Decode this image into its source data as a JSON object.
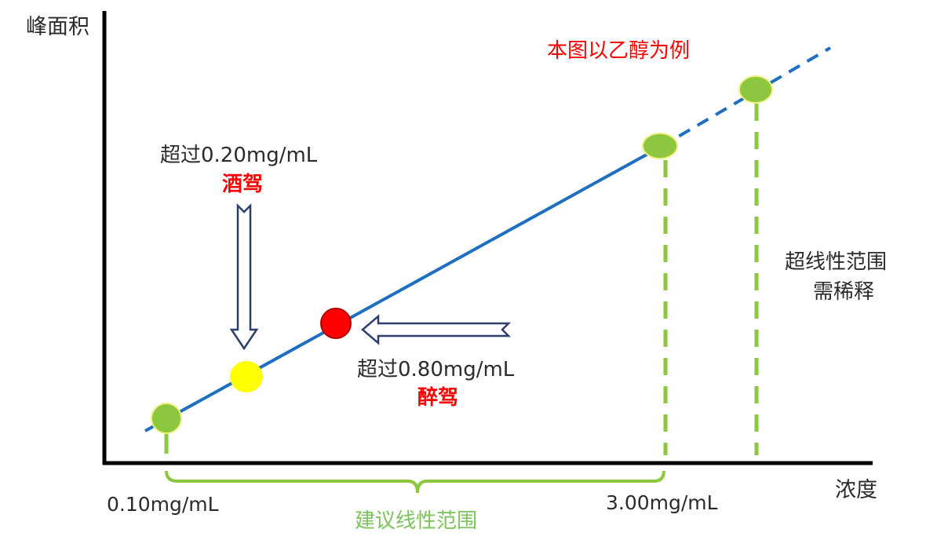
{
  "axes": {
    "y_label": "峰面积",
    "x_label": "浓度"
  },
  "note": "本图以乙醇为例",
  "drink_driving": {
    "threshold": "超过0.20mg/mL",
    "label": "酒驾"
  },
  "drunk_driving": {
    "threshold": "超过0.80mg/mL",
    "label": "醉驾"
  },
  "range": {
    "low": "0.10mg/mL",
    "high": "3.00mg/mL",
    "label": "建议线性范围"
  },
  "beyond": {
    "line1": "超线性范围",
    "line2": "需稀释"
  },
  "colors": {
    "line": "#1f6fc0",
    "green_point": "#8dc63f",
    "yellow_point": "#ffff00",
    "red_point": "#ff0000",
    "green_label": "#7cc35a",
    "arrow_outline": "#2e3f6e"
  }
}
